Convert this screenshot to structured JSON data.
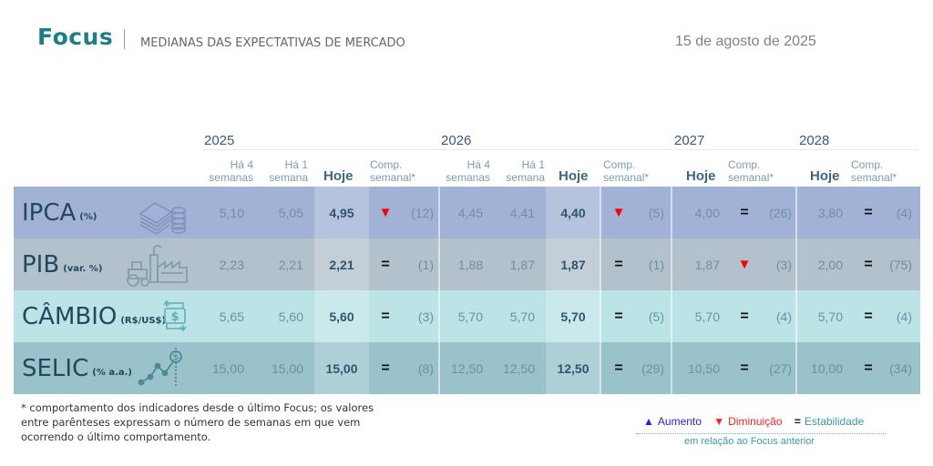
{
  "header": {
    "title": "Focus",
    "subtitle": "MEDIANAS DAS EXPECTATIVAS DE MERCADO",
    "date": "15 de agosto de 2025"
  },
  "years": [
    "2025",
    "2026",
    "2027",
    "2028"
  ],
  "column_headers": {
    "ha4_line1": "Há 4",
    "ha4_line2": "semanas",
    "ha1_line1": "Há 1",
    "ha1_line2": "semana",
    "hoje": "Hoje",
    "comp_line1": "Comp.",
    "comp_line2": "semanal*"
  },
  "colors": {
    "brand": "#1a7f8a",
    "ipca_row": "#a2b2d6",
    "pib_row": "#b2c1cb",
    "cambio_row": "#bce3e6",
    "selic_row": "#99c2cb",
    "down": "#ff0000",
    "up": "#2222ee",
    "stable": "#3a9aa7"
  },
  "rows": [
    {
      "name": "IPCA",
      "unit": "(%)",
      "icon": "money-stack-coins-icon",
      "y2025": {
        "ha4": "5,10",
        "ha1": "5,05",
        "hoje": "4,95",
        "trend": "down",
        "weeks": "(12)"
      },
      "y2026": {
        "ha4": "4,45",
        "ha1": "4,41",
        "hoje": "4,40",
        "trend": "down",
        "weeks": "(5)"
      },
      "y2027": {
        "hoje": "4,00",
        "trend": "stable",
        "weeks": "(26)"
      },
      "y2028": {
        "hoje": "3,80",
        "trend": "stable",
        "weeks": "(4)"
      }
    },
    {
      "name": "PIB",
      "unit": "(var. %)",
      "icon": "tractor-factory-icon",
      "y2025": {
        "ha4": "2,23",
        "ha1": "2,21",
        "hoje": "2,21",
        "trend": "stable",
        "weeks": "(1)"
      },
      "y2026": {
        "ha4": "1,88",
        "ha1": "1,87",
        "hoje": "1,87",
        "trend": "stable",
        "weeks": "(1)"
      },
      "y2027": {
        "hoje": "1,87",
        "trend": "down",
        "weeks": "(3)"
      },
      "y2028": {
        "hoje": "2,00",
        "trend": "stable",
        "weeks": "(75)"
      }
    },
    {
      "name": "CÂMBIO",
      "unit": "(R$/US$)",
      "icon": "currency-exchange-icon",
      "y2025": {
        "ha4": "5,65",
        "ha1": "5,60",
        "hoje": "5,60",
        "trend": "stable",
        "weeks": "(3)"
      },
      "y2026": {
        "ha4": "5,70",
        "ha1": "5,70",
        "hoje": "5,70",
        "trend": "stable",
        "weeks": "(5)"
      },
      "y2027": {
        "hoje": "5,70",
        "trend": "stable",
        "weeks": "(4)"
      },
      "y2028": {
        "hoje": "5,70",
        "trend": "stable",
        "weeks": "(4)"
      }
    },
    {
      "name": "SELIC",
      "unit": "(% a.a.)",
      "icon": "interest-rate-chart-icon",
      "y2025": {
        "ha4": "15,00",
        "ha1": "15,00",
        "hoje": "15,00",
        "trend": "stable",
        "weeks": "(8)"
      },
      "y2026": {
        "ha4": "12,50",
        "ha1": "12,50",
        "hoje": "12,50",
        "trend": "stable",
        "weeks": "(29)"
      },
      "y2027": {
        "hoje": "10,50",
        "trend": "stable",
        "weeks": "(27)"
      },
      "y2028": {
        "hoje": "10,00",
        "trend": "stable",
        "weeks": "(34)"
      }
    }
  ],
  "trend_symbols": {
    "up": "▲",
    "down": "▼",
    "stable": "="
  },
  "footnote": "* comportamento dos indicadores desde o último Focus; os valores entre parênteses expressam o número de semanas em que vem ocorrendo o último comportamento.",
  "legend": {
    "up_label": "Aumento",
    "down_label": "Diminuição",
    "stable_label": "Estabilidade",
    "caption": "em relação ao Focus anterior"
  }
}
